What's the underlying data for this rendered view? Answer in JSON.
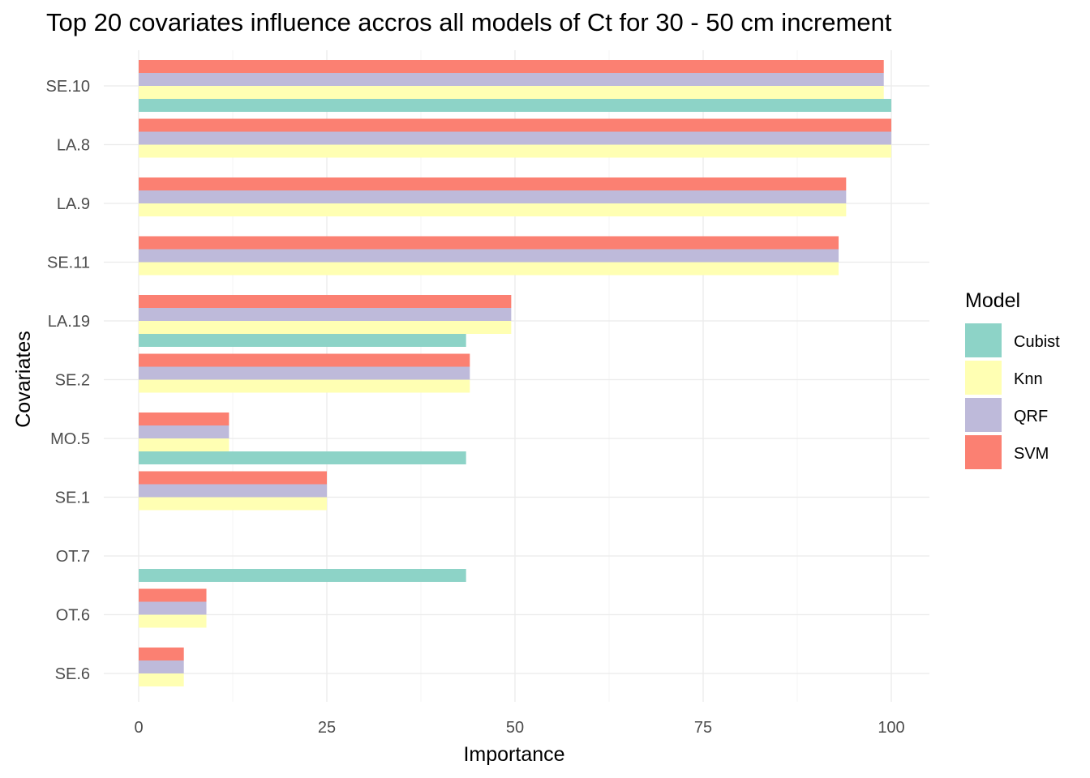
{
  "chart_data": {
    "type": "bar",
    "orientation": "horizontal",
    "title": "Top 20 covariates influence accros all models of Ct for 30 - 50 cm increment",
    "xlabel": "Importance",
    "ylabel": "Covariates",
    "xlim": [
      0,
      100
    ],
    "x_ticks": [
      "0",
      "25",
      "50",
      "75",
      "100"
    ],
    "grid": true,
    "legend_title": "Model",
    "legend_position": "right",
    "categories": [
      "SE.10",
      "LA.8",
      "LA.9",
      "SE.11",
      "LA.19",
      "SE.2",
      "MO.5",
      "SE.1",
      "OT.7",
      "OT.6",
      "SE.6"
    ],
    "series": [
      {
        "name": "Cubist",
        "color": "#8DD3C7",
        "values": [
          100,
          null,
          null,
          null,
          43.5,
          null,
          43.5,
          null,
          43.5,
          null,
          null
        ]
      },
      {
        "name": "Knn",
        "color": "#FFFFB3",
        "values": [
          99,
          100,
          94,
          93,
          49.5,
          44,
          12,
          25,
          null,
          9,
          6
        ]
      },
      {
        "name": "QRF",
        "color": "#BEBADA",
        "values": [
          99,
          100,
          94,
          93,
          49.5,
          44,
          12,
          25,
          null,
          9,
          6
        ]
      },
      {
        "name": "SVM",
        "color": "#FB8072",
        "values": [
          99,
          100,
          94,
          93,
          49.5,
          44,
          12,
          25,
          null,
          9,
          6
        ]
      }
    ]
  }
}
